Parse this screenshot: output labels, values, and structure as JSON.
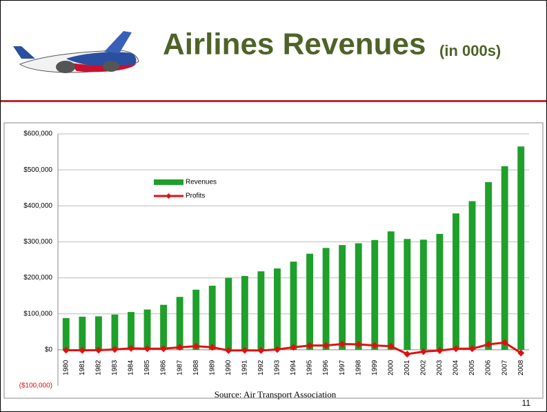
{
  "chart_data": {
    "type": "bar-line",
    "title": "Airlines Revenues",
    "title_note": "(in 000s)",
    "categories": [
      "1980",
      "1981",
      "1982",
      "1983",
      "1984",
      "1985",
      "1986",
      "1987",
      "1988",
      "1989",
      "1990",
      "1991",
      "1992",
      "1993",
      "1994",
      "1995",
      "1996",
      "1997",
      "1998",
      "1999",
      "2000",
      "2001",
      "2002",
      "2003",
      "2004",
      "2005",
      "2006",
      "2007",
      "2008"
    ],
    "series": [
      {
        "name": "Revenues",
        "kind": "bar",
        "color": "#1ea02a",
        "values": [
          88000,
          92000,
          93000,
          98000,
          105000,
          112000,
          125000,
          147000,
          167000,
          178000,
          200000,
          205000,
          218000,
          226000,
          245000,
          267000,
          283000,
          291000,
          296000,
          305000,
          329000,
          308000,
          306000,
          322000,
          379000,
          413000,
          466000,
          510000,
          565000
        ]
      },
      {
        "name": "Profits",
        "kind": "line",
        "color": "#e01010",
        "values": [
          -1000,
          -1500,
          -1000,
          1000,
          4000,
          3000,
          3000,
          7000,
          10000,
          7000,
          -2000,
          -1500,
          -2000,
          1000,
          7000,
          12000,
          12000,
          16000,
          15000,
          12000,
          10000,
          -12000,
          -5000,
          -2000,
          3000,
          3000,
          15000,
          20000,
          -9000
        ]
      }
    ],
    "ylim": [
      -100000,
      600000
    ],
    "yticks": [
      {
        "value": -100000,
        "label": "($100,000)"
      },
      {
        "value": 0,
        "label": "$0"
      },
      {
        "value": 100000,
        "label": "$100,000"
      },
      {
        "value": 200000,
        "label": "$200,000"
      },
      {
        "value": 300000,
        "label": "$300,000"
      },
      {
        "value": 400000,
        "label": "$400,000"
      },
      {
        "value": 500000,
        "label": "$500,000"
      },
      {
        "value": 600000,
        "label": "$600,000"
      }
    ],
    "grid": true,
    "source": "Source: Air Transport Association"
  },
  "page_number": "11"
}
